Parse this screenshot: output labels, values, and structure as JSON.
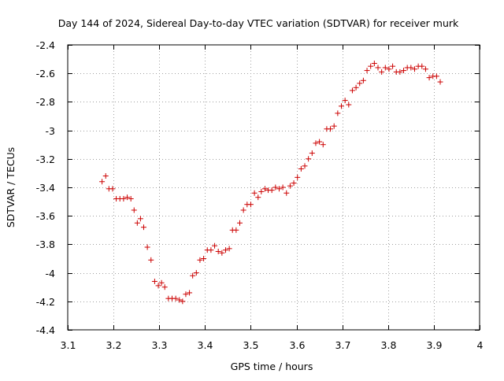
{
  "chart_data": {
    "type": "scatter",
    "title": "Day 144 of 2024, Sidereal Day-to-day VTEC variation (SDTVAR) for receiver murk",
    "xlabel": "GPS time / hours",
    "ylabel": "SDTVAR / TECUs",
    "xlim": [
      3.1,
      4.0
    ],
    "ylim": [
      -4.4,
      -2.4
    ],
    "xticks": [
      3.1,
      3.2,
      3.3,
      3.4,
      3.5,
      3.6,
      3.7,
      3.8,
      3.9,
      4.0
    ],
    "xtick_labels": [
      "3.1",
      "3.2",
      "3.3",
      "3.4",
      "3.5",
      "3.6",
      "3.7",
      "3.8",
      "3.9",
      "4"
    ],
    "yticks": [
      -2.4,
      -2.6,
      -2.8,
      -3.0,
      -3.2,
      -3.4,
      -3.6,
      -3.8,
      -4.0,
      -4.2,
      -4.4
    ],
    "ytick_labels": [
      "-2.4",
      "-2.6",
      "-2.8",
      "-3",
      "-3.2",
      "-3.4",
      "-3.6",
      "-3.8",
      "-4",
      "-4.2",
      "-4.4"
    ],
    "grid": true,
    "marker": "+",
    "color": "#cc0000",
    "series": [
      {
        "name": "SDTVAR",
        "points": [
          [
            3.175,
            -3.36
          ],
          [
            3.183,
            -3.32
          ],
          [
            3.19,
            -3.41
          ],
          [
            3.198,
            -3.41
          ],
          [
            3.206,
            -3.48
          ],
          [
            3.214,
            -3.48
          ],
          [
            3.222,
            -3.48
          ],
          [
            3.23,
            -3.47
          ],
          [
            3.238,
            -3.48
          ],
          [
            3.245,
            -3.56
          ],
          [
            3.252,
            -3.65
          ],
          [
            3.259,
            -3.62
          ],
          [
            3.266,
            -3.68
          ],
          [
            3.274,
            -3.82
          ],
          [
            3.282,
            -3.91
          ],
          [
            3.29,
            -4.06
          ],
          [
            3.298,
            -4.09
          ],
          [
            3.305,
            -4.07
          ],
          [
            3.312,
            -4.1
          ],
          [
            3.32,
            -4.18
          ],
          [
            3.328,
            -4.18
          ],
          [
            3.336,
            -4.18
          ],
          [
            3.344,
            -4.19
          ],
          [
            3.351,
            -4.2
          ],
          [
            3.358,
            -4.15
          ],
          [
            3.366,
            -4.14
          ],
          [
            3.373,
            -4.02
          ],
          [
            3.381,
            -4.0
          ],
          [
            3.389,
            -3.91
          ],
          [
            3.397,
            -3.9
          ],
          [
            3.405,
            -3.84
          ],
          [
            3.413,
            -3.84
          ],
          [
            3.421,
            -3.81
          ],
          [
            3.429,
            -3.85
          ],
          [
            3.437,
            -3.86
          ],
          [
            3.445,
            -3.84
          ],
          [
            3.453,
            -3.83
          ],
          [
            3.46,
            -3.7
          ],
          [
            3.468,
            -3.7
          ],
          [
            3.476,
            -3.65
          ],
          [
            3.484,
            -3.56
          ],
          [
            3.492,
            -3.52
          ],
          [
            3.5,
            -3.52
          ],
          [
            3.508,
            -3.44
          ],
          [
            3.516,
            -3.47
          ],
          [
            3.523,
            -3.43
          ],
          [
            3.531,
            -3.41
          ],
          [
            3.538,
            -3.42
          ],
          [
            3.546,
            -3.42
          ],
          [
            3.554,
            -3.4
          ],
          [
            3.562,
            -3.41
          ],
          [
            3.57,
            -3.4
          ],
          [
            3.578,
            -3.44
          ],
          [
            3.586,
            -3.39
          ],
          [
            3.594,
            -3.37
          ],
          [
            3.602,
            -3.33
          ],
          [
            3.61,
            -3.27
          ],
          [
            3.618,
            -3.25
          ],
          [
            3.626,
            -3.2
          ],
          [
            3.634,
            -3.16
          ],
          [
            3.642,
            -3.09
          ],
          [
            3.65,
            -3.08
          ],
          [
            3.658,
            -3.1
          ],
          [
            3.666,
            -2.99
          ],
          [
            3.674,
            -2.99
          ],
          [
            3.682,
            -2.97
          ],
          [
            3.69,
            -2.88
          ],
          [
            3.698,
            -2.83
          ],
          [
            3.706,
            -2.79
          ],
          [
            3.714,
            -2.82
          ],
          [
            3.722,
            -2.72
          ],
          [
            3.73,
            -2.7
          ],
          [
            3.738,
            -2.67
          ],
          [
            3.746,
            -2.65
          ],
          [
            3.754,
            -2.58
          ],
          [
            3.762,
            -2.55
          ],
          [
            3.77,
            -2.53
          ],
          [
            3.778,
            -2.56
          ],
          [
            3.786,
            -2.59
          ],
          [
            3.794,
            -2.56
          ],
          [
            3.802,
            -2.57
          ],
          [
            3.81,
            -2.55
          ],
          [
            3.818,
            -2.59
          ],
          [
            3.826,
            -2.59
          ],
          [
            3.834,
            -2.58
          ],
          [
            3.842,
            -2.56
          ],
          [
            3.85,
            -2.56
          ],
          [
            3.858,
            -2.57
          ],
          [
            3.866,
            -2.55
          ],
          [
            3.874,
            -2.55
          ],
          [
            3.882,
            -2.57
          ],
          [
            3.89,
            -2.63
          ],
          [
            3.898,
            -2.62
          ],
          [
            3.906,
            -2.62
          ],
          [
            3.914,
            -2.66
          ]
        ]
      }
    ]
  }
}
